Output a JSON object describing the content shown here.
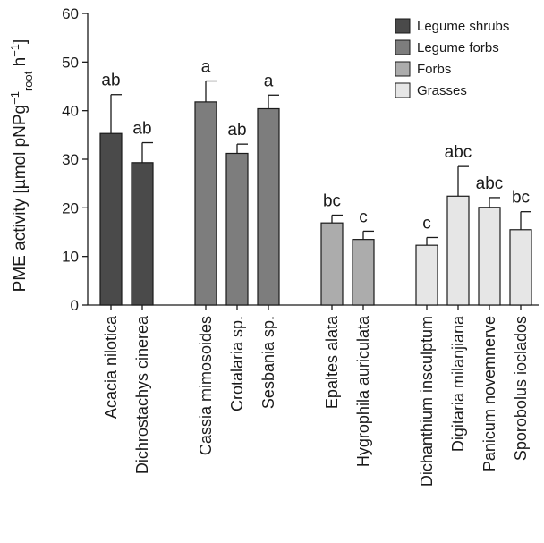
{
  "chart_data": {
    "type": "bar",
    "ylabel": {
      "prefix": "PME activity [µmol pNPg",
      "sup1": "−1",
      "sub": "root",
      "mid": " h",
      "sup2": "−1",
      "suffix": "]"
    },
    "ylim": [
      0,
      60
    ],
    "yticks": [
      "0",
      "10",
      "20",
      "30",
      "40",
      "50",
      "60"
    ],
    "legend": {
      "position": "top-right",
      "entries": [
        {
          "name": "Legume shrubs",
          "color": "#4a4a4a"
        },
        {
          "name": "Legume forbs",
          "color": "#7d7d7d"
        },
        {
          "name": "Forbs",
          "color": "#acacac"
        },
        {
          "name": "Grasses",
          "color": "#e6e6e6"
        }
      ]
    },
    "bars": [
      {
        "category": "Acacia nilotica",
        "group": 0,
        "value": 35.3,
        "error": 8.0,
        "letter": "ab"
      },
      {
        "category": "Dichrostachys cinerea",
        "group": 0,
        "value": 29.3,
        "error": 4.1,
        "letter": "ab"
      },
      {
        "category": "Cassia mimosoides",
        "group": 1,
        "value": 41.8,
        "error": 4.3,
        "letter": "a"
      },
      {
        "category": "Crotalaria sp.",
        "group": 1,
        "value": 31.2,
        "error": 1.9,
        "letter": "ab"
      },
      {
        "category": "Sesbania sp.",
        "group": 1,
        "value": 40.4,
        "error": 2.8,
        "letter": "a"
      },
      {
        "category": "Epaltes alata",
        "group": 2,
        "value": 16.9,
        "error": 1.6,
        "letter": "bc"
      },
      {
        "category": "Hygrophila auriculata",
        "group": 2,
        "value": 13.5,
        "error": 1.7,
        "letter": "c"
      },
      {
        "category": "Dichanthium insculptum",
        "group": 3,
        "value": 12.3,
        "error": 1.6,
        "letter": "c"
      },
      {
        "category": "Digitaria milanjiana",
        "group": 3,
        "value": 22.4,
        "error": 6.1,
        "letter": "abc"
      },
      {
        "category": "Panicum novemnerve",
        "group": 3,
        "value": 20.1,
        "error": 2.0,
        "letter": "abc"
      },
      {
        "category": "Sporobolus ioclados",
        "group": 3,
        "value": 15.5,
        "error": 3.7,
        "letter": "bc"
      }
    ]
  }
}
